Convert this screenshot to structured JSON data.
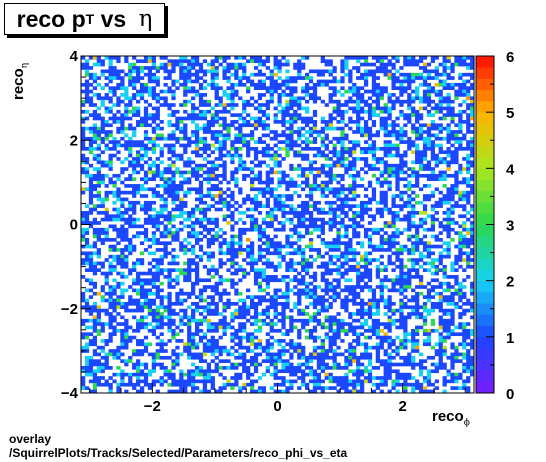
{
  "title": {
    "main": "reco p",
    "sub": "T",
    "mid": " vs ",
    "symbol": "η"
  },
  "xlabel": {
    "main": "reco",
    "sub": "ϕ"
  },
  "ylabel": {
    "main": "reco",
    "sub": "η"
  },
  "footer": {
    "line1": "overlay",
    "line2": "/SquirrelPlots/Tracks/Selected/Parameters/reco_phi_vs_eta"
  },
  "colors": {
    "low": "#7a1cff",
    "one": "#1b47ff",
    "two": "#15d2f5",
    "three": "#2bd84f",
    "four": "#a8e81e",
    "five": "#ffb300",
    "six": "#ff0a00"
  },
  "chart_data": {
    "type": "heatmap",
    "xlim": [
      -3.14,
      3.14
    ],
    "ylim": [
      -4,
      4
    ],
    "xticks": [
      {
        "value": -2,
        "label": "−2"
      },
      {
        "value": 0,
        "label": "0"
      },
      {
        "value": 2,
        "label": "2"
      }
    ],
    "yticks": [
      {
        "value": -4,
        "label": "−4"
      },
      {
        "value": -2,
        "label": "−2"
      },
      {
        "value": 0,
        "label": "0"
      },
      {
        "value": 2,
        "label": "2"
      },
      {
        "value": 4,
        "label": "4"
      }
    ],
    "zlim": [
      0,
      6
    ],
    "zticks": [
      {
        "value": 0,
        "label": "0"
      },
      {
        "value": 1,
        "label": "1"
      },
      {
        "value": 2,
        "label": "2"
      },
      {
        "value": 3,
        "label": "3"
      },
      {
        "value": 4,
        "label": "4"
      },
      {
        "value": 5,
        "label": "5"
      },
      {
        "value": 6,
        "label": "6"
      }
    ],
    "bins": {
      "nx": 100,
      "ny": 100
    },
    "distribution": "approximately uniform occupancy in eta and phi; most filled bins have 1 entry, some 2, occasional 3-5"
  }
}
